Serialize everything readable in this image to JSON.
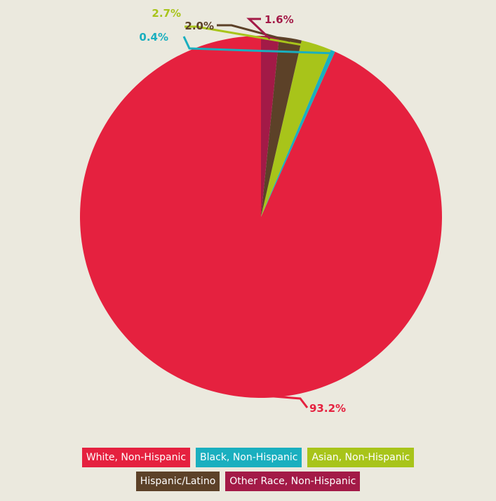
{
  "chart_data": {
    "type": "pie",
    "slices": [
      {
        "label": "White, Non-Hispanic",
        "value": 93.2,
        "value_label": "93.2%",
        "color": "#e5213f"
      },
      {
        "label": "Black, Non-Hispanic",
        "value": 0.4,
        "value_label": "0.4%",
        "color": "#1aafbf"
      },
      {
        "label": "Asian, Non-Hispanic",
        "value": 2.7,
        "value_label": "2.7%",
        "color": "#a8c41a"
      },
      {
        "label": "Hispanic/Latino",
        "value": 2.0,
        "value_label": "2.0%",
        "color": "#5c4128"
      },
      {
        "label": "Other Race, Non-Hispanic",
        "value": 1.6,
        "value_label": "1.6%",
        "color": "#a31a47"
      }
    ],
    "start": "top",
    "direction": "counterclockwise",
    "legend_placement": "bottom"
  }
}
